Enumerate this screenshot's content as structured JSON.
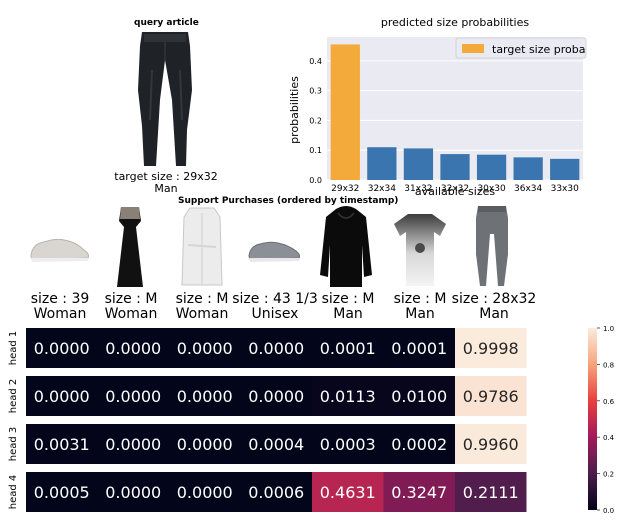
{
  "query": {
    "title": "query article",
    "target_size_label": "target size : 29x32",
    "gender": "Man"
  },
  "support_title": "Support Purchases (ordered by timestamp)",
  "support": [
    {
      "product": "sneaker",
      "size_label": "size : 39",
      "gender": "Woman"
    },
    {
      "product": "dress",
      "size_label": "size : M",
      "gender": "Woman"
    },
    {
      "product": "coat",
      "size_label": "size : M",
      "gender": "Woman"
    },
    {
      "product": "sneaker",
      "size_label": "size : 43 1/3",
      "gender": "Unisex"
    },
    {
      "product": "hoodie",
      "size_label": "size : M",
      "gender": "Man"
    },
    {
      "product": "tshirt",
      "size_label": "size : M",
      "gender": "Man"
    },
    {
      "product": "jeans",
      "size_label": "size : 28x32",
      "gender": "Man"
    }
  ],
  "colors": {
    "highlight_bar": "#f4a93b",
    "bar": "#3b75af",
    "plot_bg": "#eaeaf2"
  },
  "chart_data": [
    {
      "type": "bar",
      "title": "predicted size probabilities",
      "xlabel": "available sizes",
      "ylabel": "probabilities",
      "categories": [
        "29x32",
        "32x34",
        "31x32",
        "32x32",
        "30x30",
        "36x34",
        "33x30"
      ],
      "values": [
        0.455,
        0.11,
        0.106,
        0.087,
        0.085,
        0.076,
        0.071
      ],
      "highlight_index": 0,
      "legend": {
        "label": "target size proba",
        "placement": "top-right"
      },
      "ylim": [
        0,
        0.48
      ],
      "yticks": [
        "0.0",
        "0.1",
        "0.2",
        "0.3",
        "0.4"
      ],
      "grid": true
    },
    {
      "type": "heatmap",
      "rows": [
        "head 1",
        "head 2",
        "head 3",
        "head 4"
      ],
      "values": [
        [
          "0.0000",
          "0.0000",
          "0.0000",
          "0.0000",
          "0.0001",
          "0.0001",
          "0.9998"
        ],
        [
          "0.0000",
          "0.0000",
          "0.0000",
          "0.0000",
          "0.0113",
          "0.0100",
          "0.9786"
        ],
        [
          "0.0031",
          "0.0000",
          "0.0000",
          "0.0004",
          "0.0003",
          "0.0002",
          "0.9960"
        ],
        [
          "0.0005",
          "0.0000",
          "0.0000",
          "0.0006",
          "0.4631",
          "0.3247",
          "0.2111"
        ]
      ],
      "colorbar": {
        "range": [
          0,
          1
        ],
        "ticks": [
          "0.0",
          "0.2",
          "0.4",
          "0.6",
          "0.8",
          "1.0"
        ]
      },
      "colormap": "rocket"
    }
  ]
}
